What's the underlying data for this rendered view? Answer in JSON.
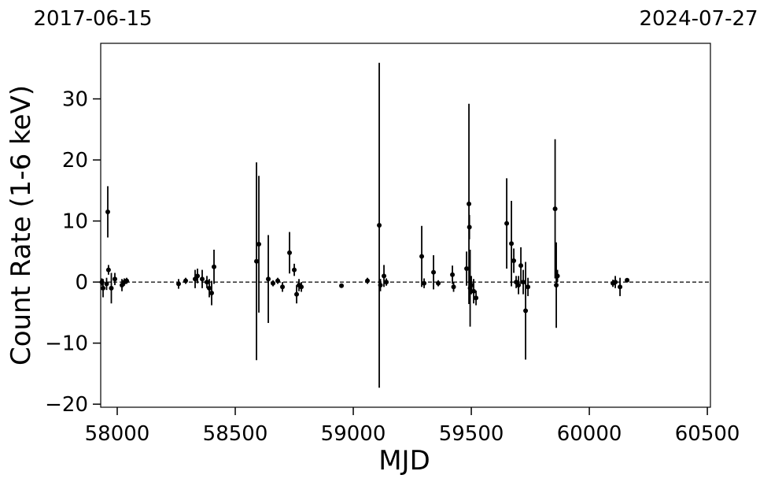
{
  "chart_data": {
    "type": "errorbar",
    "xlabel": "MJD",
    "ylabel": "Count Rate (1-6 keV)",
    "top_labels": [
      "2017-06-15",
      "2024-07-27"
    ],
    "xlim": [
      57930,
      60513
    ],
    "ylim": [
      -20.5,
      39.1
    ],
    "xticks": [
      58000,
      58500,
      59000,
      59500,
      60000,
      60500
    ],
    "yticks": [
      {
        "value": -20,
        "label": "−20"
      },
      {
        "value": -10,
        "label": "−10"
      },
      0,
      10,
      20,
      30
    ],
    "hline": 0,
    "color": "#000000",
    "x": [
      57935,
      57940,
      57955,
      57960,
      57963,
      57975,
      57990,
      58020,
      58030,
      58040,
      58260,
      58290,
      58330,
      58340,
      58360,
      58380,
      58390,
      58400,
      58410,
      58590,
      58600,
      58640,
      58660,
      58680,
      58700,
      58730,
      58750,
      58760,
      58770,
      58780,
      58950,
      59060,
      59110,
      59115,
      59130,
      59140,
      59290,
      59300,
      59340,
      59360,
      59420,
      59425,
      59480,
      59490,
      59492,
      59495,
      59500,
      59510,
      59520,
      59650,
      59670,
      59680,
      59690,
      59700,
      59710,
      59720,
      59730,
      59740,
      59855,
      59860,
      59865,
      60100,
      60110,
      60130,
      60160
    ],
    "values": [
      0,
      -1,
      -0.3,
      11.5,
      2,
      -1,
      0.5,
      -0.5,
      0,
      0.2,
      -0.3,
      0.2,
      0.5,
      1,
      0.5,
      0,
      -1,
      -1.8,
      2.5,
      3.4,
      6.2,
      0.5,
      -0.2,
      0.2,
      -0.8,
      4.8,
      2,
      -2,
      -0.5,
      -0.8,
      -0.6,
      0.2,
      9.3,
      -0.5,
      1,
      0,
      4.2,
      -0.2,
      1.6,
      -0.2,
      1.2,
      -0.8,
      2.2,
      12.8,
      9,
      -1,
      -0.5,
      -1.5,
      -2.6,
      9.6,
      6.3,
      3.5,
      0,
      -0.5,
      2.7,
      0,
      -4.7,
      -0.8,
      12,
      -0.5,
      1,
      -0.2,
      0,
      -0.8,
      0.3
    ],
    "errors": [
      0.6,
      1.5,
      1,
      4.2,
      0.8,
      2.5,
      1,
      1,
      0.6,
      0.5,
      0.8,
      0.5,
      1.5,
      1.2,
      1.5,
      1,
      1.5,
      2,
      2.8,
      16.2,
      11.2,
      7.2,
      0.5,
      0.5,
      0.8,
      3.4,
      1,
      1.5,
      1,
      0.8,
      0.3,
      0.5,
      26.6,
      1,
      1.8,
      0.6,
      5,
      0.8,
      2.8,
      0.5,
      1.5,
      0.8,
      2.8,
      16.4,
      2,
      6.3,
      1.5,
      2,
      1.2,
      7.4,
      7,
      2,
      1,
      1.5,
      3,
      2,
      8,
      1.5,
      11.4,
      7,
      1,
      0.6,
      1,
      1.5,
      0.3
    ]
  }
}
